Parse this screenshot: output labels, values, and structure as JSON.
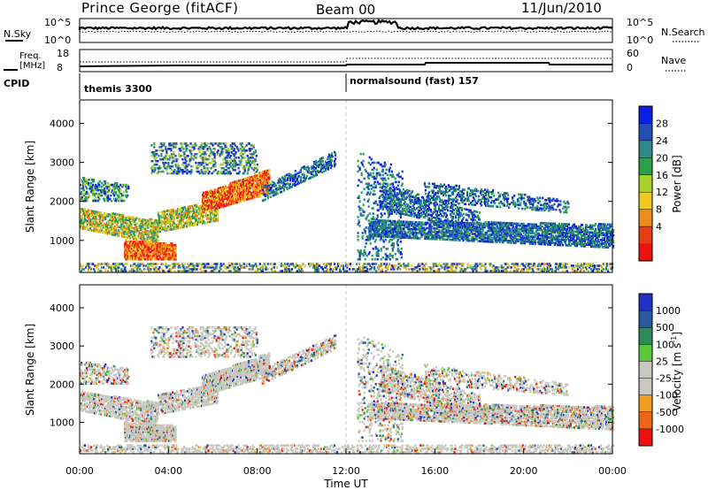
{
  "header": {
    "station": "Prince George (fitACF)",
    "beam": "Beam 00",
    "date": "11/Jun/2010"
  },
  "top_panels": {
    "nsky_label": "N.Sky",
    "nsky_ticks": [
      "10^5",
      "10^0"
    ],
    "nsearch_label": "N.Search",
    "nsearch_ticks": [
      "10^5",
      "10^0"
    ],
    "freq_label_1": "Freq.",
    "freq_label_2": "[MHz]",
    "freq_ticks": [
      "18",
      "8"
    ],
    "nave_label": "Nave",
    "nave_ticks": [
      "60",
      "0"
    ],
    "cpid_label": "CPID",
    "cpid_segments": [
      {
        "name": "themis 3300",
        "start_hour": 0
      },
      {
        "name": "normalsound (fast) 157",
        "start_hour": 12
      }
    ]
  },
  "chart_data": [
    {
      "type": "heatmap",
      "title": "",
      "ylabel": "Slant Range [km]",
      "xlabel": "",
      "xlim_hours": [
        0,
        24
      ],
      "ylim": [
        180,
        4600
      ],
      "yticks": [
        "1000",
        "2000",
        "3000",
        "4000"
      ],
      "colorbar": {
        "label": "Power [dB]",
        "ticks": [
          "28",
          "24",
          "20",
          "16",
          "12",
          "8",
          "4"
        ],
        "colors": [
          "#0a1ee6",
          "#2050b4",
          "#2e8a8a",
          "#2aa04a",
          "#aad22a",
          "#f0c81e",
          "#f08c1e",
          "#e83c14",
          "#f01010"
        ]
      }
    },
    {
      "type": "heatmap",
      "title": "",
      "ylabel": "Slant Range [km]",
      "xlabel": "Time UT",
      "xlim_hours": [
        0,
        24
      ],
      "ylim": [
        180,
        4600
      ],
      "yticks": [
        "1000",
        "2000",
        "3000",
        "4000"
      ],
      "xticks": [
        "00:00",
        "04:00",
        "08:00",
        "12:00",
        "16:00",
        "20:00",
        "00:00"
      ],
      "colorbar": {
        "label": "Velocity [m s",
        "label_sup": "-1",
        "label_end": "]",
        "ticks": [
          "1000",
          "500",
          "100",
          "25",
          "-25",
          "-100",
          "-500",
          "-1000"
        ],
        "colors": [
          "#1e32c8",
          "#2a5aa0",
          "#2e8a5a",
          "#5ac83a",
          "#c8c8c0",
          "#c8c8c0",
          "#f0a01e",
          "#f06414",
          "#f01010"
        ]
      }
    }
  ],
  "colors": {
    "ground_scatter": "#c8c8c0",
    "axis": "#000000"
  }
}
